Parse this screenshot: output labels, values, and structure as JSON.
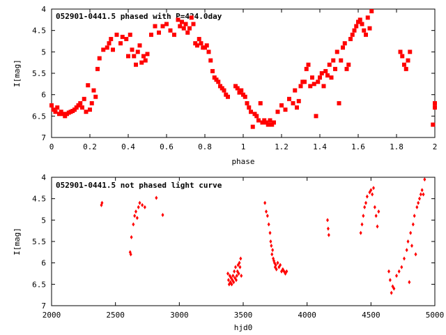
{
  "chart_data": [
    {
      "type": "scatter",
      "title": "052901-0441.5 phased with P=424.0day",
      "xlabel": "phase",
      "ylabel": "I[mag]",
      "xlim": [
        0,
        2
      ],
      "ylim": [
        7,
        4
      ],
      "y_inverted": true,
      "x_ticks": [
        "0",
        "0.2",
        "0.4",
        "0.6",
        "0.8",
        "1",
        "1.2",
        "1.4",
        "1.6",
        "1.8",
        "2"
      ],
      "y_ticks": [
        "4",
        "4.5",
        "5",
        "5.5",
        "6",
        "6.5",
        "7"
      ],
      "grid": false,
      "marker_color": "#ff0000",
      "marker": "filled-square",
      "series": [
        {
          "x": [
            0.0,
            0.01,
            0.02,
            0.03,
            0.04,
            0.05,
            0.06,
            0.07,
            0.08,
            0.09,
            0.1,
            0.11,
            0.12,
            0.13,
            0.14,
            0.15,
            0.16,
            0.17,
            0.18,
            0.19,
            0.2,
            0.21,
            0.22,
            0.23,
            0.24,
            0.25,
            0.27,
            0.29,
            0.3,
            0.31,
            0.32,
            0.34,
            0.36,
            0.37,
            0.39,
            0.4,
            0.41,
            0.42,
            0.43,
            0.44,
            0.45,
            0.46,
            0.47,
            0.48,
            0.49,
            0.5,
            0.52,
            0.54,
            0.56,
            0.58,
            0.6,
            0.62,
            0.64,
            0.66,
            0.67,
            0.68,
            0.69,
            0.7,
            0.71,
            0.72,
            0.73,
            0.74,
            0.75,
            0.76,
            0.77,
            0.78,
            0.79,
            0.8,
            0.81,
            0.82,
            0.83,
            0.84,
            0.85,
            0.86,
            0.87,
            0.88,
            0.89,
            0.9,
            0.91,
            0.92,
            0.96,
            0.97,
            0.98,
            0.99,
            1.0,
            1.01,
            1.02,
            1.03,
            1.04,
            1.05,
            1.06,
            1.07,
            1.08,
            1.09,
            1.1,
            1.11,
            1.12,
            1.13,
            1.14,
            1.15,
            1.16,
            1.18,
            1.2,
            1.22,
            1.24,
            1.26,
            1.27,
            1.28,
            1.29,
            1.3,
            1.31,
            1.32,
            1.33,
            1.34,
            1.35,
            1.36,
            1.37,
            1.38,
            1.39,
            1.4,
            1.41,
            1.42,
            1.43,
            1.44,
            1.45,
            1.46,
            1.47,
            1.48,
            1.49,
            1.5,
            1.51,
            1.52,
            1.53,
            1.54,
            1.55,
            1.56,
            1.57,
            1.58,
            1.59,
            1.6,
            1.61,
            1.62,
            1.63,
            1.64,
            1.65,
            1.66,
            1.67,
            1.82,
            1.83,
            1.84,
            1.85,
            1.86,
            1.87,
            1.99,
            2.0,
            2.0
          ],
          "y": [
            6.25,
            6.35,
            6.4,
            6.3,
            6.45,
            6.4,
            6.45,
            6.5,
            6.45,
            6.42,
            6.4,
            6.38,
            6.35,
            6.3,
            6.25,
            6.2,
            6.3,
            6.1,
            6.4,
            5.78,
            6.35,
            6.2,
            5.9,
            6.05,
            5.4,
            5.15,
            4.95,
            4.9,
            4.8,
            4.7,
            4.95,
            4.6,
            4.8,
            4.65,
            4.7,
            5.1,
            4.6,
            4.95,
            5.1,
            5.3,
            5.0,
            4.85,
            5.25,
            5.1,
            5.2,
            5.05,
            4.6,
            4.4,
            4.55,
            4.4,
            4.35,
            4.5,
            4.6,
            4.25,
            4.4,
            4.3,
            4.45,
            4.35,
            4.55,
            4.45,
            4.2,
            4.35,
            4.8,
            4.85,
            4.7,
            4.8,
            4.9,
            4.9,
            4.85,
            5.0,
            5.2,
            5.45,
            5.6,
            5.65,
            5.7,
            5.8,
            5.85,
            5.9,
            6.0,
            6.05,
            5.8,
            5.85,
            5.95,
            5.9,
            6.0,
            6.05,
            6.2,
            6.3,
            6.4,
            6.75,
            6.45,
            6.5,
            6.6,
            6.2,
            6.65,
            6.6,
            6.65,
            6.7,
            6.6,
            6.7,
            6.65,
            6.4,
            6.25,
            6.35,
            6.1,
            6.2,
            5.9,
            6.3,
            6.15,
            5.8,
            5.7,
            5.7,
            5.4,
            5.3,
            5.8,
            5.6,
            5.75,
            6.5,
            5.7,
            5.6,
            5.5,
            5.8,
            5.45,
            5.55,
            5.3,
            5.6,
            5.2,
            5.4,
            5.0,
            6.2,
            5.2,
            4.9,
            4.8,
            5.4,
            5.3,
            4.7,
            4.6,
            4.5,
            4.4,
            4.3,
            4.25,
            4.35,
            4.5,
            4.6,
            4.2,
            4.45,
            4.05,
            5.0,
            5.1,
            5.3,
            5.4,
            5.2,
            5.0,
            6.7,
            6.3,
            6.2
          ]
        }
      ]
    },
    {
      "type": "scatter",
      "title": "052901-0441.5 not phased light curve",
      "xlabel": "hjd0",
      "ylabel": "I[mag]",
      "xlim": [
        2000,
        5000
      ],
      "ylim": [
        7,
        4
      ],
      "y_inverted": true,
      "x_ticks": [
        "2000",
        "2500",
        "3000",
        "3500",
        "4000",
        "4500",
        "5000"
      ],
      "y_ticks": [
        "4",
        "4.5",
        "5",
        "5.5",
        "6",
        "6.5",
        "7"
      ],
      "grid": false,
      "marker_color": "#ff0000",
      "marker": "filled-diamond",
      "series": [
        {
          "x": [
            2390,
            2395,
            2615,
            2620,
            2625,
            2640,
            2650,
            2660,
            2670,
            2680,
            2690,
            2710,
            2730,
            2820,
            2870,
            3380,
            3385,
            3390,
            3395,
            3400,
            3405,
            3410,
            3415,
            3420,
            3425,
            3430,
            3435,
            3440,
            3445,
            3450,
            3455,
            3460,
            3465,
            3470,
            3475,
            3480,
            3485,
            3670,
            3680,
            3690,
            3700,
            3710,
            3715,
            3720,
            3725,
            3730,
            3735,
            3740,
            3745,
            3750,
            3755,
            3760,
            3770,
            3780,
            3790,
            3800,
            3810,
            3820,
            3830,
            3840,
            4160,
            4165,
            4170,
            4420,
            4430,
            4440,
            4450,
            4460,
            4470,
            4490,
            4500,
            4510,
            4520,
            4530,
            4540,
            4550,
            4560,
            4640,
            4650,
            4660,
            4670,
            4680,
            4700,
            4720,
            4740,
            4760,
            4780,
            4790,
            4800,
            4810,
            4820,
            4830,
            4840,
            4850,
            4860,
            4870,
            4880,
            4890,
            4900,
            4910,
            4920
          ],
          "y": [
            4.65,
            4.6,
            5.75,
            5.8,
            5.4,
            5.1,
            4.9,
            4.8,
            4.95,
            4.7,
            4.6,
            4.65,
            4.7,
            4.48,
            4.88,
            6.25,
            6.4,
            6.5,
            6.3,
            6.45,
            6.35,
            6.5,
            6.4,
            6.3,
            6.45,
            6.2,
            6.35,
            6.1,
            6.4,
            6.3,
            6.2,
            6.05,
            6.25,
            6.0,
            6.1,
            5.9,
            6.3,
            4.6,
            4.8,
            4.9,
            5.1,
            5.3,
            5.5,
            5.6,
            5.8,
            5.7,
            5.9,
            5.95,
            6.0,
            6.1,
            6.05,
            6.15,
            6.0,
            6.1,
            6.05,
            6.2,
            6.15,
            6.2,
            6.25,
            6.2,
            5.0,
            5.2,
            5.35,
            5.3,
            5.1,
            4.9,
            4.7,
            4.6,
            4.45,
            4.35,
            4.3,
            4.4,
            4.25,
            4.7,
            4.9,
            5.15,
            4.8,
            6.2,
            6.4,
            6.7,
            6.55,
            6.6,
            6.3,
            6.2,
            6.1,
            5.9,
            5.7,
            5.5,
            6.45,
            5.3,
            5.6,
            5.1,
            4.9,
            5.8,
            4.7,
            4.6,
            4.5,
            4.4,
            4.3,
            4.4,
            4.05
          ]
        }
      ]
    }
  ]
}
